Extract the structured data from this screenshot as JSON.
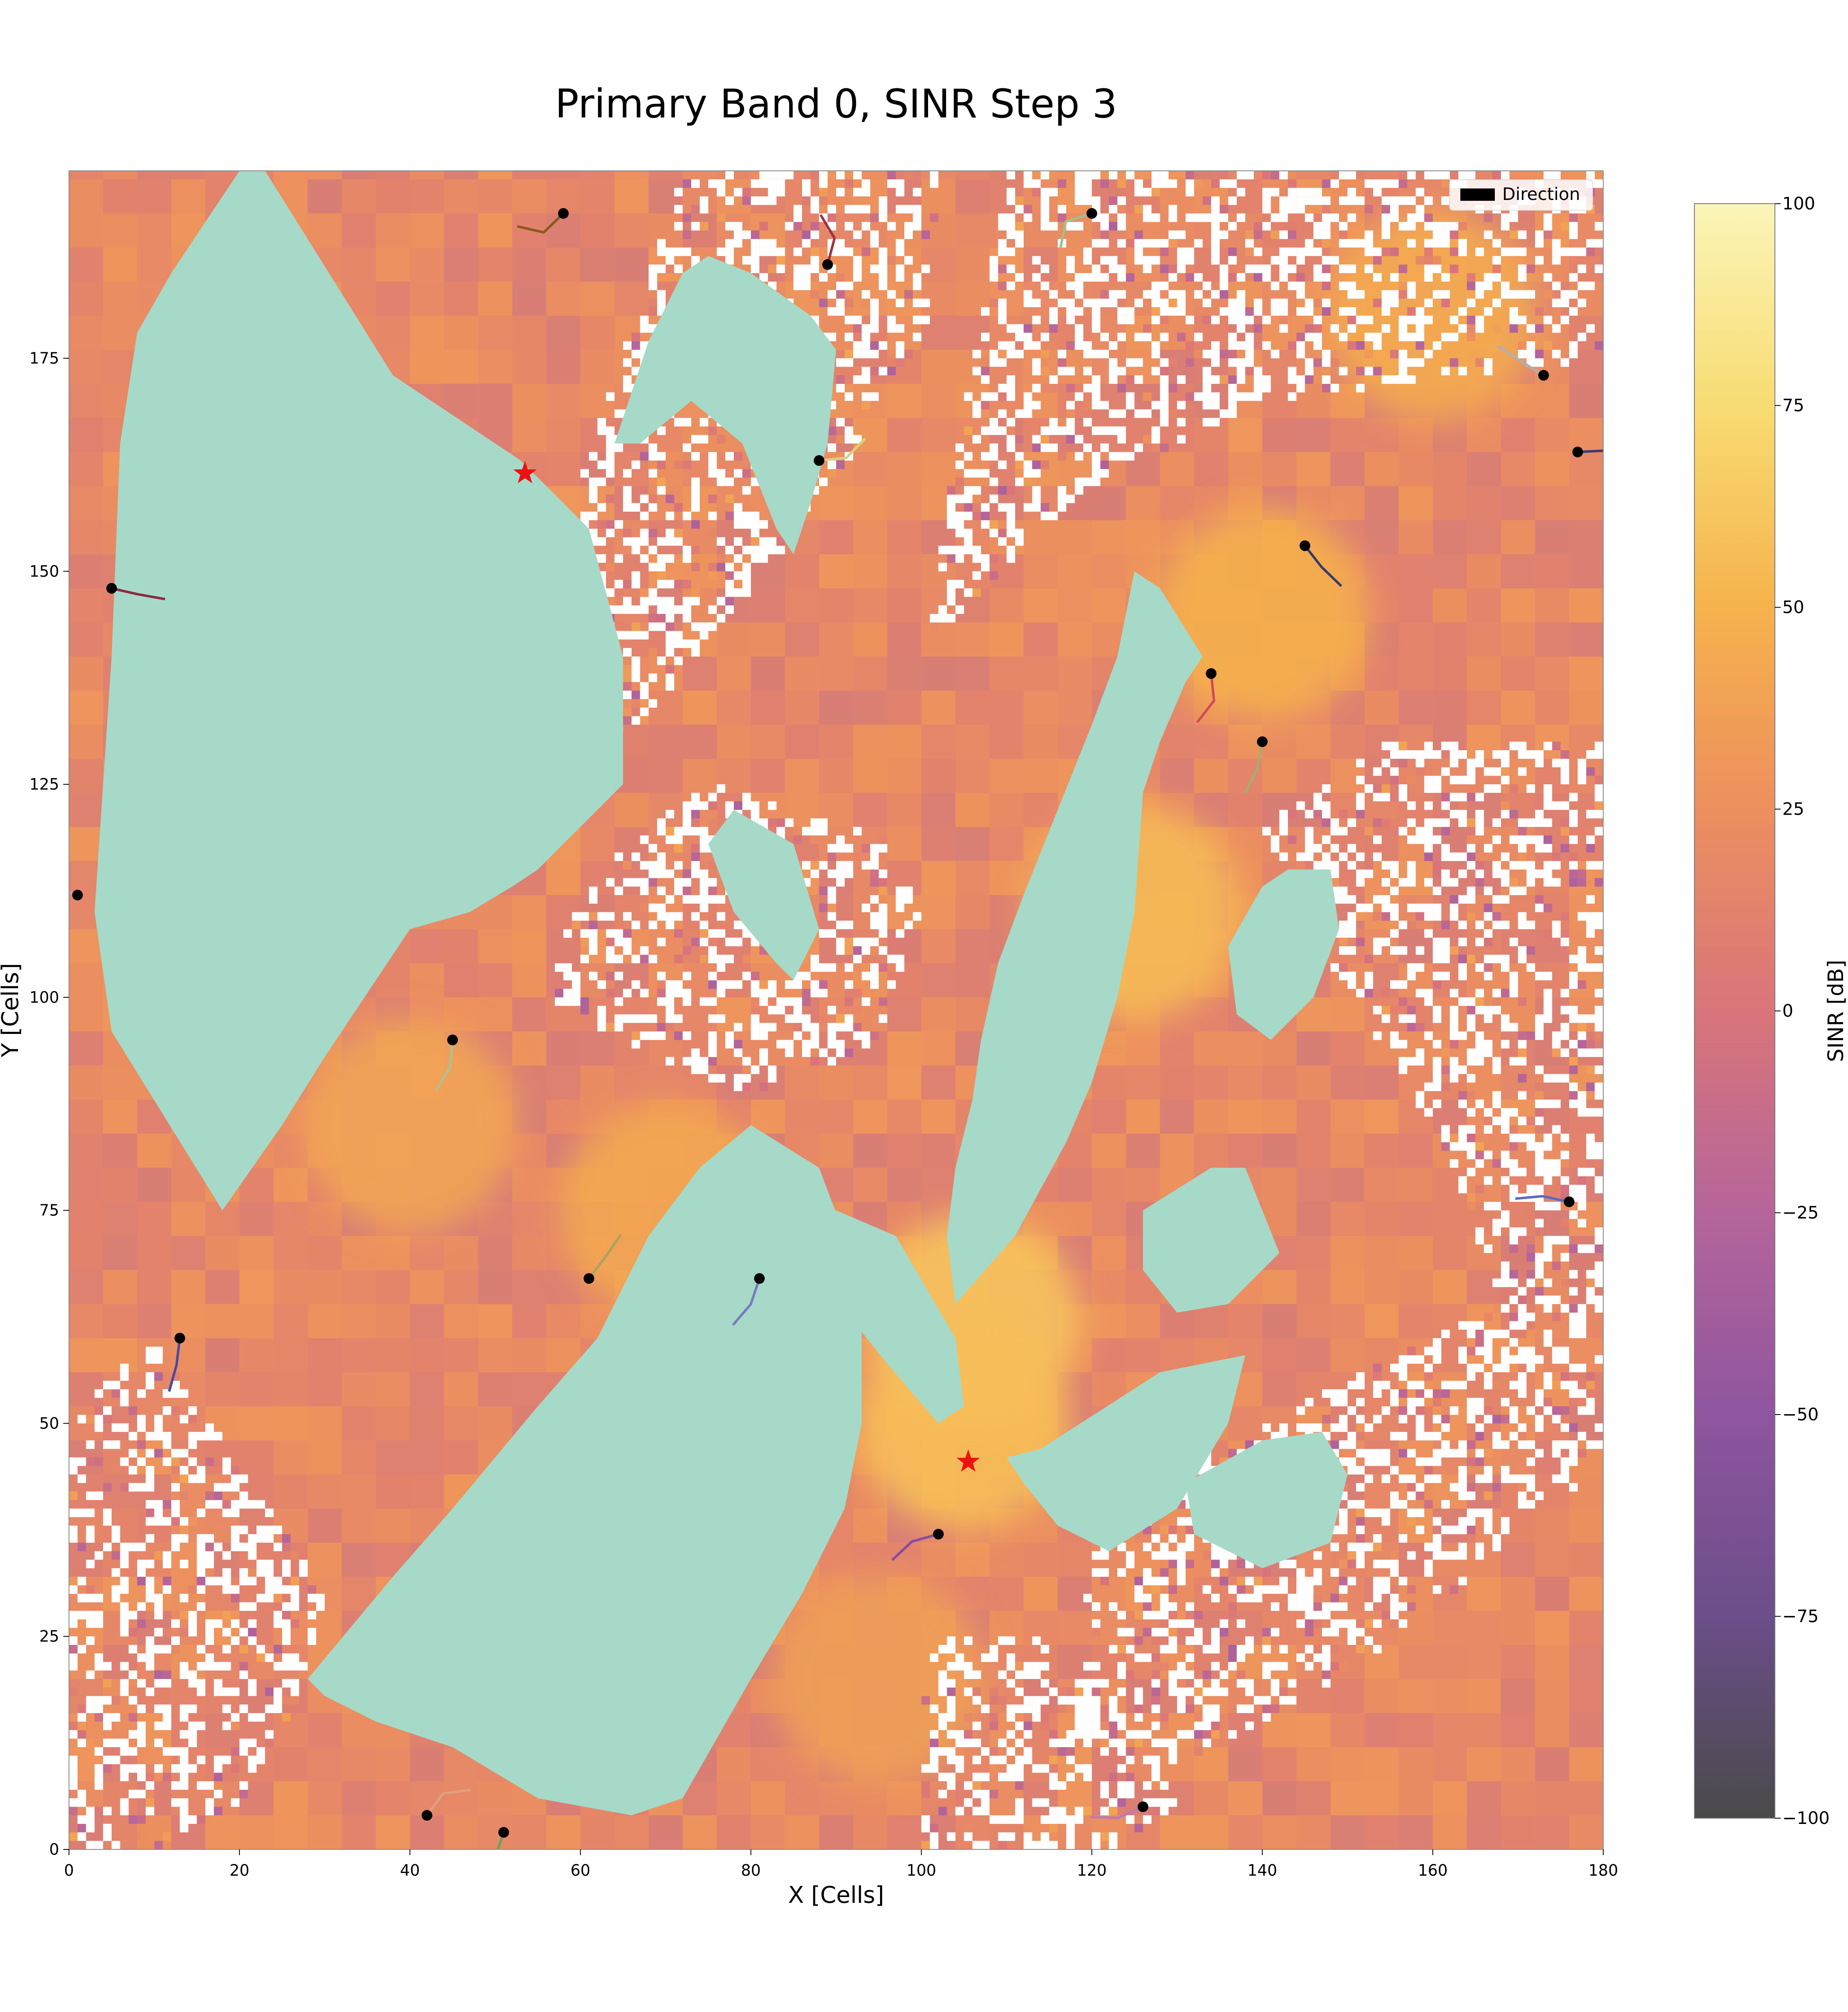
{
  "chart_data": {
    "type": "heatmap",
    "title": "Primary Band 0, SINR Step 3",
    "xlabel": "X [Cells]",
    "ylabel": "Y [Cells]",
    "xlim": [
      0,
      180
    ],
    "ylim": [
      0,
      197
    ],
    "x_ticks": [
      "0",
      "20",
      "40",
      "60",
      "80",
      "100",
      "120",
      "140",
      "160",
      "180"
    ],
    "y_ticks": [
      "0",
      "25",
      "50",
      "75",
      "100",
      "125",
      "150",
      "175"
    ],
    "grid": false,
    "legend": {
      "placement": "top-right",
      "entries": [
        "Direction"
      ]
    },
    "colorbar": {
      "label": "SINR [dB]",
      "min": -100,
      "max": 100,
      "ticks": [
        "100",
        "75",
        "50",
        "25",
        "0",
        "−25",
        "−50",
        "−75",
        "−100"
      ],
      "colors": [
        "#4a4a4a",
        "#6b4e8a",
        "#8f559f",
        "#b5659a",
        "#d9757a",
        "#ec8f5f",
        "#f6b24c",
        "#f8dc73",
        "#fbf5b8"
      ]
    },
    "colors": {
      "building": "#a6d9c8",
      "no_coverage": "#ffffff",
      "base_station_marker": "#ee1111",
      "user_marker": "#000000"
    },
    "base_stations": [
      {
        "x": 53.5,
        "y": 161.5
      },
      {
        "x": 105.5,
        "y": 45.5
      }
    ],
    "users": [
      {
        "x": 58,
        "y": 192,
        "color": "#8a5a1a"
      },
      {
        "x": 89,
        "y": 186,
        "color": "#a03040"
      },
      {
        "x": 120,
        "y": 192,
        "color": "#9fbf8f"
      },
      {
        "x": 173,
        "y": 173,
        "color": "#b0b0b0"
      },
      {
        "x": 177,
        "y": 164,
        "color": "#3a3a7a"
      },
      {
        "x": 88,
        "y": 163,
        "color": "#d8d080"
      },
      {
        "x": 145,
        "y": 153,
        "color": "#3a3a6a"
      },
      {
        "x": 5,
        "y": 148,
        "color": "#8a2a40"
      },
      {
        "x": 134,
        "y": 138,
        "color": "#d04a5a"
      },
      {
        "x": 140,
        "y": 130,
        "color": "#a0b070"
      },
      {
        "x": 1,
        "y": 112,
        "color": "#e090c0"
      },
      {
        "x": 45,
        "y": 95,
        "color": "#b0c090"
      },
      {
        "x": 176,
        "y": 76,
        "color": "#5a6ac0"
      },
      {
        "x": 61,
        "y": 67,
        "color": "#b0a060"
      },
      {
        "x": 81,
        "y": 67,
        "color": "#7a7ac0"
      },
      {
        "x": 13,
        "y": 60,
        "color": "#4a4aa0"
      },
      {
        "x": 102,
        "y": 37,
        "color": "#8a4aa0"
      },
      {
        "x": 42,
        "y": 4,
        "color": "#e0a080"
      },
      {
        "x": 51,
        "y": 2,
        "color": "#70a060"
      },
      {
        "x": 126,
        "y": 5,
        "color": "#c07ab0"
      }
    ],
    "field_peaks": [
      {
        "x": 106,
        "y": 62,
        "sinr": 60
      },
      {
        "x": 105,
        "y": 50,
        "sinr": 58
      },
      {
        "x": 125,
        "y": 110,
        "sinr": 55
      },
      {
        "x": 140,
        "y": 145,
        "sinr": 48
      },
      {
        "x": 70,
        "y": 75,
        "sinr": 42
      },
      {
        "x": 40,
        "y": 85,
        "sinr": 40
      },
      {
        "x": 95,
        "y": 20,
        "sinr": 35
      },
      {
        "x": 160,
        "y": 180,
        "sinr": 45
      }
    ],
    "buildings": [
      [
        [
          12,
          185
        ],
        [
          20,
          197
        ],
        [
          23,
          197
        ],
        [
          38,
          173
        ],
        [
          53,
          163
        ],
        [
          61,
          155
        ],
        [
          65,
          140
        ],
        [
          65,
          125
        ],
        [
          55,
          115
        ],
        [
          52,
          113
        ],
        [
          47,
          110
        ],
        [
          40,
          108
        ],
        [
          36,
          102
        ],
        [
          30,
          93
        ],
        [
          25,
          85
        ],
        [
          18,
          75
        ],
        [
          5,
          96
        ],
        [
          3,
          110
        ],
        [
          4,
          125
        ],
        [
          5,
          140
        ],
        [
          6,
          165
        ],
        [
          8,
          178
        ]
      ],
      [
        [
          64,
          165
        ],
        [
          68,
          177
        ],
        [
          72,
          185
        ],
        [
          75,
          187
        ],
        [
          80,
          185
        ],
        [
          87,
          180
        ],
        [
          90,
          176
        ],
        [
          89,
          165
        ],
        [
          87,
          158
        ],
        [
          85,
          152
        ],
        [
          83,
          155
        ],
        [
          79,
          165
        ],
        [
          73,
          170
        ],
        [
          67,
          165
        ]
      ],
      [
        [
          85,
          102
        ],
        [
          88,
          108
        ],
        [
          85,
          118
        ],
        [
          78,
          122
        ],
        [
          75,
          118
        ],
        [
          78,
          110
        ],
        [
          83,
          104
        ]
      ],
      [
        [
          82,
          80
        ],
        [
          86,
          77
        ],
        [
          90,
          75
        ],
        [
          97,
          72
        ],
        [
          104,
          60
        ],
        [
          105,
          52
        ],
        [
          102,
          50
        ],
        [
          96,
          57
        ],
        [
          92,
          62
        ],
        [
          88,
          66
        ],
        [
          85,
          70
        ],
        [
          82,
          75
        ]
      ],
      [
        [
          104,
          64
        ],
        [
          111,
          72
        ],
        [
          117,
          83
        ],
        [
          120,
          90
        ],
        [
          123,
          100
        ],
        [
          125,
          110
        ],
        [
          126,
          124
        ],
        [
          128,
          130
        ],
        [
          131,
          137
        ],
        [
          133,
          140
        ],
        [
          128,
          148
        ],
        [
          125,
          150
        ],
        [
          123,
          140
        ],
        [
          120,
          132
        ],
        [
          116,
          122
        ],
        [
          112,
          112
        ],
        [
          109,
          104
        ],
        [
          107,
          95
        ],
        [
          106,
          88
        ],
        [
          104,
          80
        ],
        [
          103,
          72
        ]
      ],
      [
        [
          136,
          106
        ],
        [
          140,
          113
        ],
        [
          143,
          115
        ],
        [
          148,
          115
        ],
        [
          149,
          108
        ],
        [
          146,
          100
        ],
        [
          141,
          95
        ],
        [
          137,
          98
        ]
      ],
      [
        [
          126,
          75
        ],
        [
          134,
          80
        ],
        [
          138,
          80
        ],
        [
          142,
          70
        ],
        [
          136,
          64
        ],
        [
          130,
          63
        ],
        [
          126,
          68
        ]
      ],
      [
        [
          28,
          20
        ],
        [
          38,
          32
        ],
        [
          45,
          40
        ],
        [
          55,
          52
        ],
        [
          62,
          60
        ],
        [
          68,
          72
        ],
        [
          74,
          80
        ],
        [
          80,
          85
        ],
        [
          88,
          80
        ],
        [
          91,
          72
        ],
        [
          93,
          62
        ],
        [
          93,
          50
        ],
        [
          91,
          40
        ],
        [
          86,
          30
        ],
        [
          80,
          20
        ],
        [
          76,
          13
        ],
        [
          72,
          6
        ],
        [
          66,
          4
        ],
        [
          55,
          6
        ],
        [
          45,
          12
        ],
        [
          36,
          15
        ],
        [
          30,
          18
        ]
      ],
      [
        [
          110,
          46
        ],
        [
          114,
          47
        ],
        [
          128,
          56
        ],
        [
          138,
          58
        ],
        [
          136,
          50
        ],
        [
          130,
          40
        ],
        [
          122,
          35
        ],
        [
          116,
          38
        ],
        [
          112,
          43
        ]
      ],
      [
        [
          131,
          43
        ],
        [
          140,
          48
        ],
        [
          147,
          49
        ],
        [
          150,
          44
        ],
        [
          148,
          36
        ],
        [
          140,
          33
        ],
        [
          132,
          37
        ]
      ]
    ],
    "speckle_regions": [
      [
        [
          61,
          125
        ],
        [
          90,
          160
        ],
        [
          101,
          180
        ],
        [
          102,
          197
        ],
        [
          72,
          197
        ],
        [
          60,
          160
        ],
        [
          58,
          140
        ]
      ],
      [
        [
          100,
          140
        ],
        [
          110,
          197
        ],
        [
          180,
          197
        ],
        [
          180,
          175
        ],
        [
          140,
          170
        ],
        [
          120,
          160
        ],
        [
          110,
          150
        ]
      ],
      [
        [
          140,
          120
        ],
        [
          155,
          130
        ],
        [
          180,
          130
        ],
        [
          180,
          70
        ],
        [
          170,
          60
        ],
        [
          160,
          85
        ],
        [
          150,
          100
        ]
      ],
      [
        [
          120,
          40
        ],
        [
          130,
          45
        ],
        [
          160,
          60
        ],
        [
          180,
          70
        ],
        [
          180,
          45
        ],
        [
          150,
          20
        ],
        [
          130,
          10
        ],
        [
          118,
          12
        ]
      ],
      [
        [
          100,
          0
        ],
        [
          100,
          25
        ],
        [
          115,
          25
        ],
        [
          125,
          15
        ],
        [
          130,
          5
        ],
        [
          125,
          0
        ]
      ],
      [
        [
          0,
          0
        ],
        [
          0,
          50
        ],
        [
          10,
          60
        ],
        [
          20,
          45
        ],
        [
          30,
          30
        ],
        [
          28,
          20
        ],
        [
          20,
          5
        ],
        [
          10,
          0
        ]
      ],
      [
        [
          55,
          100
        ],
        [
          62,
          115
        ],
        [
          75,
          125
        ],
        [
          95,
          120
        ],
        [
          100,
          110
        ],
        [
          95,
          95
        ],
        [
          80,
          88
        ],
        [
          65,
          95
        ]
      ]
    ]
  }
}
